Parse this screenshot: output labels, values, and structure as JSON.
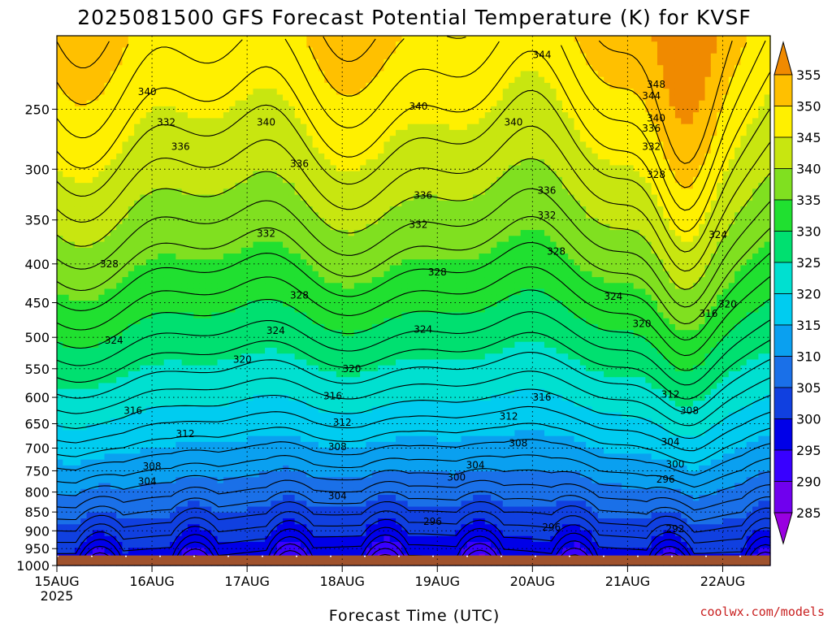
{
  "chart_data": {
    "type": "heatmap",
    "title": "2025081500 GFS Forecast Potential Temperature (K) for KVSF",
    "xlabel": "Forecast Time (UTC)",
    "ylabel": "",
    "x_ticks": [
      "15AUG",
      "16AUG",
      "17AUG",
      "18AUG",
      "19AUG",
      "20AUG",
      "21AUG",
      "22AUG"
    ],
    "x_tick_sublabel": "2025",
    "x_range": [
      "2025-08-15 00Z",
      "2025-08-22 12Z"
    ],
    "y_axis": "pressure (hPa), inverted",
    "y_range": [
      1000,
      200
    ],
    "y_ticks": [
      250,
      300,
      350,
      400,
      450,
      500,
      550,
      600,
      650,
      700,
      750,
      800,
      850,
      900,
      950,
      1000
    ],
    "grid": "dotted",
    "colorbar": {
      "placement": "right",
      "labels": [
        355,
        350,
        345,
        340,
        335,
        330,
        325,
        320,
        315,
        310,
        305,
        300,
        295,
        290,
        285
      ],
      "levels": [
        {
          "max": 285,
          "color": "#9900e0"
        },
        {
          "max": 290,
          "color": "#7000ee"
        },
        {
          "max": 295,
          "color": "#3800ff"
        },
        {
          "max": 300,
          "color": "#0000e8"
        },
        {
          "max": 305,
          "color": "#1040e0"
        },
        {
          "max": 310,
          "color": "#1a70e8"
        },
        {
          "max": 315,
          "color": "#0aa0f0"
        },
        {
          "max": 320,
          "color": "#00ccf0"
        },
        {
          "max": 325,
          "color": "#00e0d0"
        },
        {
          "max": 330,
          "color": "#00e070"
        },
        {
          "max": 335,
          "color": "#20e030"
        },
        {
          "max": 340,
          "color": "#80e020"
        },
        {
          "max": 345,
          "color": "#c8e610"
        },
        {
          "max": 350,
          "color": "#fff000"
        },
        {
          "max": 355,
          "color": "#ffc000"
        },
        {
          "max": 999,
          "color": "#f08a00"
        }
      ]
    },
    "ground_color": "#a0522d",
    "contour_interval": 2,
    "contour_labels": [
      {
        "t": 0.95,
        "p": 237,
        "v": 340
      },
      {
        "t": 1.15,
        "p": 260,
        "v": 332
      },
      {
        "t": 1.3,
        "p": 280,
        "v": 336
      },
      {
        "t": 2.2,
        "p": 260,
        "v": 340
      },
      {
        "t": 2.55,
        "p": 295,
        "v": 336
      },
      {
        "t": 2.2,
        "p": 365,
        "v": 332
      },
      {
        "t": 3.8,
        "p": 248,
        "v": 340
      },
      {
        "t": 3.85,
        "p": 325,
        "v": 336
      },
      {
        "t": 3.8,
        "p": 355,
        "v": 332
      },
      {
        "t": 4.8,
        "p": 260,
        "v": 340
      },
      {
        "t": 5.15,
        "p": 320,
        "v": 336
      },
      {
        "t": 5.15,
        "p": 345,
        "v": 332
      },
      {
        "t": 5.25,
        "p": 385,
        "v": 328
      },
      {
        "t": 4.0,
        "p": 410,
        "v": 328
      },
      {
        "t": 2.55,
        "p": 440,
        "v": 328
      },
      {
        "t": 0.55,
        "p": 400,
        "v": 328
      },
      {
        "t": 0.6,
        "p": 505,
        "v": 324
      },
      {
        "t": 2.3,
        "p": 490,
        "v": 324
      },
      {
        "t": 3.85,
        "p": 488,
        "v": 324
      },
      {
        "t": 5.85,
        "p": 442,
        "v": 324
      },
      {
        "t": 6.15,
        "p": 480,
        "v": 320
      },
      {
        "t": 1.95,
        "p": 535,
        "v": 320
      },
      {
        "t": 3.1,
        "p": 550,
        "v": 320
      },
      {
        "t": 2.9,
        "p": 598,
        "v": 316
      },
      {
        "t": 0.8,
        "p": 625,
        "v": 316
      },
      {
        "t": 5.1,
        "p": 600,
        "v": 316
      },
      {
        "t": 6.85,
        "p": 465,
        "v": 316
      },
      {
        "t": 6.45,
        "p": 595,
        "v": 312
      },
      {
        "t": 1.35,
        "p": 670,
        "v": 312
      },
      {
        "t": 3.0,
        "p": 648,
        "v": 312
      },
      {
        "t": 4.75,
        "p": 636,
        "v": 312
      },
      {
        "t": 6.65,
        "p": 625,
        "v": 308
      },
      {
        "t": 2.95,
        "p": 697,
        "v": 308
      },
      {
        "t": 4.85,
        "p": 690,
        "v": 308
      },
      {
        "t": 1.0,
        "p": 740,
        "v": 308
      },
      {
        "t": 0.95,
        "p": 775,
        "v": 304
      },
      {
        "t": 4.4,
        "p": 737,
        "v": 304
      },
      {
        "t": 6.45,
        "p": 687,
        "v": 304
      },
      {
        "t": 4.2,
        "p": 765,
        "v": 300
      },
      {
        "t": 6.5,
        "p": 735,
        "v": 300
      },
      {
        "t": 2.95,
        "p": 810,
        "v": 304
      },
      {
        "t": 6.4,
        "p": 770,
        "v": 296
      },
      {
        "t": 3.95,
        "p": 875,
        "v": 296
      },
      {
        "t": 5.2,
        "p": 890,
        "v": 296
      },
      {
        "t": 6.5,
        "p": 895,
        "v": 292
      },
      {
        "t": 7.05,
        "p": 452,
        "v": 320
      },
      {
        "t": 6.95,
        "p": 366,
        "v": 324
      },
      {
        "t": 6.3,
        "p": 305,
        "v": 328
      },
      {
        "t": 6.25,
        "p": 280,
        "v": 332
      },
      {
        "t": 6.25,
        "p": 265,
        "v": 336
      },
      {
        "t": 6.25,
        "p": 240,
        "v": 344
      },
      {
        "t": 6.3,
        "p": 257,
        "v": 340
      },
      {
        "t": 6.3,
        "p": 232,
        "v": 348
      },
      {
        "t": 5.1,
        "p": 212,
        "v": 344
      }
    ]
  }
}
